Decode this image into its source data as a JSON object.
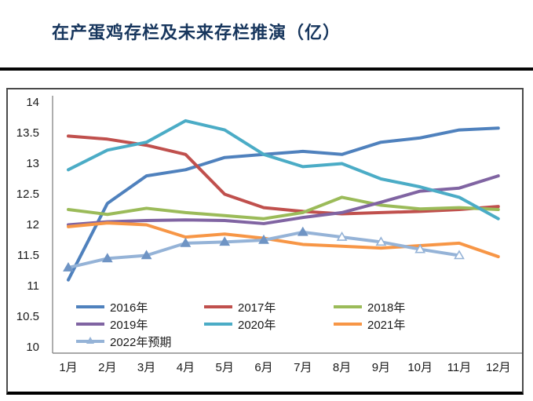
{
  "title": "在产蛋鸡存栏及未来存栏推演（亿）",
  "colors": {
    "title": "#17365D",
    "rule": "#050505",
    "axis_line": "#8c8c8c",
    "tick_text": "#1a1a1a"
  },
  "chart_data": {
    "type": "line",
    "title": "在产蛋鸡存栏及未来存栏推演（亿）",
    "x_categories": [
      "1月",
      "2月",
      "3月",
      "4月",
      "5月",
      "6月",
      "7月",
      "8月",
      "9月",
      "10月",
      "11月",
      "12月"
    ],
    "ylim": [
      10,
      14
    ],
    "y_ticks": [
      14,
      13.5,
      13,
      12.5,
      12,
      11.5,
      11,
      10.5,
      10
    ],
    "grid": false,
    "legend_position": "inside-bottom",
    "series": [
      {
        "name": "2016年",
        "color": "#4F81BD",
        "values": [
          11.1,
          12.35,
          12.8,
          12.9,
          13.1,
          13.15,
          13.2,
          13.15,
          13.35,
          13.42,
          13.55,
          13.58
        ]
      },
      {
        "name": "2017年",
        "color": "#C0504D",
        "values": [
          13.45,
          13.4,
          13.3,
          13.15,
          12.5,
          12.28,
          12.22,
          12.18,
          12.2,
          12.22,
          12.25,
          12.3
        ]
      },
      {
        "name": "2018年",
        "color": "#9BBB59",
        "values": [
          12.25,
          12.17,
          12.27,
          12.2,
          12.15,
          12.1,
          12.2,
          12.45,
          12.32,
          12.26,
          12.28,
          12.25
        ]
      },
      {
        "name": "2019年",
        "color": "#8064A2",
        "values": [
          12.0,
          12.05,
          12.07,
          12.08,
          12.07,
          12.02,
          12.12,
          12.2,
          12.37,
          12.55,
          12.6,
          12.8
        ]
      },
      {
        "name": "2020年",
        "color": "#4BACC6",
        "values": [
          12.9,
          13.22,
          13.35,
          13.7,
          13.55,
          13.15,
          12.95,
          13.0,
          12.75,
          12.62,
          12.45,
          12.1
        ]
      },
      {
        "name": "2021年",
        "color": "#F79646",
        "values": [
          11.97,
          12.03,
          12.0,
          11.8,
          11.85,
          11.78,
          11.68,
          11.65,
          11.62,
          11.66,
          11.7,
          11.48
        ]
      },
      {
        "name": "2022年预期",
        "color": "#95B3D7",
        "marker": "triangle",
        "open_markers_from_month": 8,
        "values": [
          11.3,
          11.45,
          11.5,
          11.7,
          11.72,
          11.75,
          11.88,
          11.8,
          11.72,
          11.6,
          11.5
        ]
      }
    ]
  }
}
